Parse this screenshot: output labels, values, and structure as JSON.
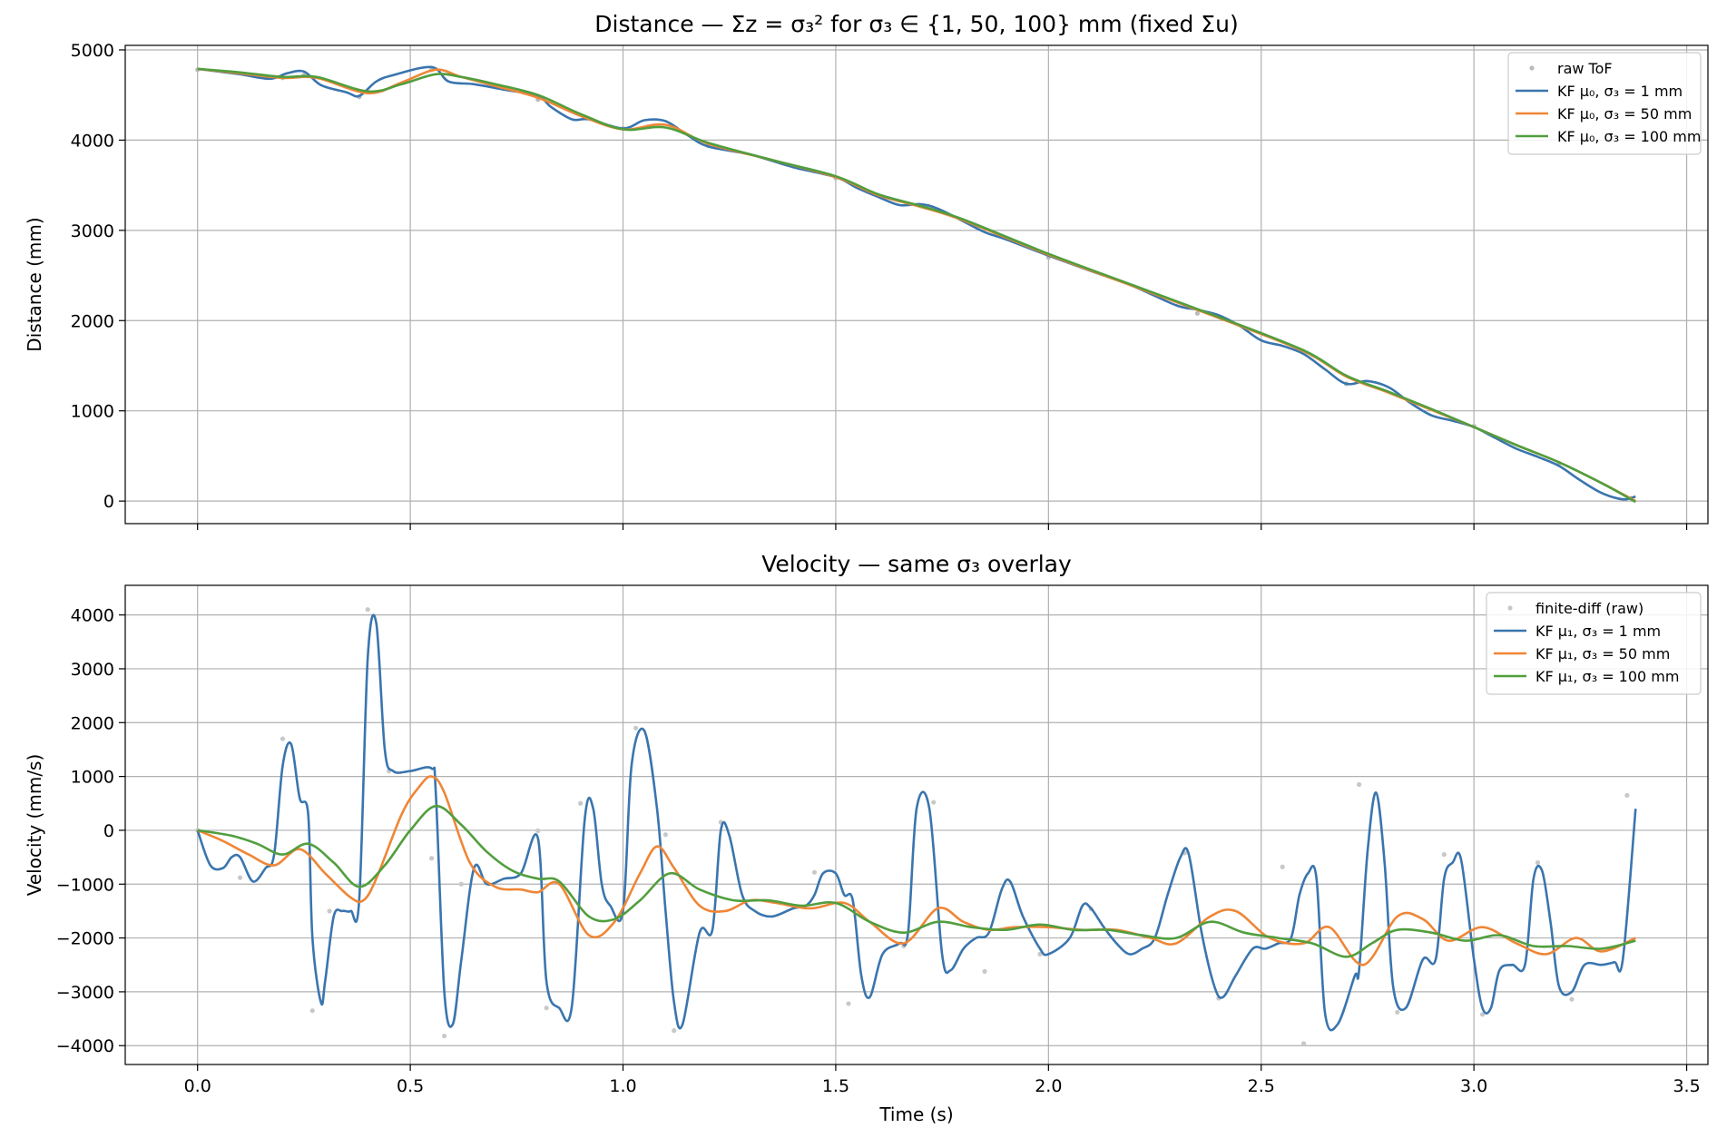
{
  "chart_data": [
    {
      "type": "line",
      "title": "Distance — Σz = σ₃² for σ₃ ∈ {1, 50, 100} mm (fixed Σu)",
      "xlabel": "",
      "ylabel": "Distance (mm)",
      "xlim": [
        -0.17,
        3.55
      ],
      "ylim": [
        -250,
        5050
      ],
      "x_ticks": [
        0.0,
        0.5,
        1.0,
        1.5,
        2.0,
        2.5,
        3.0,
        3.5
      ],
      "x_tick_labels": [],
      "y_ticks": [
        0,
        1000,
        2000,
        3000,
        4000,
        5000
      ],
      "y_tick_labels": [
        "0",
        "1000",
        "2000",
        "3000",
        "4000",
        "5000"
      ],
      "grid": true,
      "legend": "top-right",
      "series": [
        {
          "name": "raw ToF",
          "kind": "scatter",
          "color": "#bbbbbb",
          "x": [
            0.0,
            0.2,
            0.25,
            0.38,
            0.55,
            0.8,
            1.0,
            1.2,
            1.5,
            1.7,
            2.0,
            2.35,
            2.7,
            3.0,
            3.2,
            3.37
          ],
          "y": [
            4780,
            4690,
            4720,
            4480,
            4780,
            4450,
            4130,
            3940,
            3580,
            3270,
            2700,
            2080,
            1300,
            830,
            420,
            30
          ]
        },
        {
          "name": "KF μ₀, σ₃ = 1 mm",
          "kind": "line",
          "color": "#3a75ae",
          "x": [
            0.0,
            0.05,
            0.1,
            0.17,
            0.21,
            0.25,
            0.29,
            0.35,
            0.38,
            0.42,
            0.46,
            0.55,
            0.59,
            0.65,
            0.72,
            0.8,
            0.83,
            0.88,
            0.92,
            1.0,
            1.05,
            1.1,
            1.15,
            1.2,
            1.3,
            1.4,
            1.5,
            1.55,
            1.6,
            1.65,
            1.7,
            1.74,
            1.8,
            1.85,
            1.9,
            2.0,
            2.1,
            2.2,
            2.3,
            2.35,
            2.4,
            2.45,
            2.5,
            2.55,
            2.6,
            2.65,
            2.7,
            2.75,
            2.8,
            2.85,
            2.9,
            2.95,
            3.0,
            3.05,
            3.1,
            3.15,
            3.2,
            3.25,
            3.3,
            3.35,
            3.38
          ],
          "y": [
            4790,
            4760,
            4730,
            4680,
            4740,
            4760,
            4610,
            4530,
            4490,
            4650,
            4720,
            4810,
            4650,
            4620,
            4560,
            4490,
            4370,
            4230,
            4230,
            4130,
            4220,
            4210,
            4060,
            3930,
            3840,
            3700,
            3590,
            3470,
            3370,
            3280,
            3290,
            3240,
            3100,
            2980,
            2900,
            2720,
            2550,
            2380,
            2170,
            2120,
            2060,
            1940,
            1780,
            1720,
            1630,
            1460,
            1300,
            1330,
            1260,
            1090,
            950,
            890,
            820,
            700,
            580,
            490,
            390,
            230,
            90,
            20,
            50
          ]
        },
        {
          "name": "KF μ₀, σ₃ = 50 mm",
          "kind": "line",
          "color": "#ef8636",
          "x": [
            0.0,
            0.1,
            0.2,
            0.28,
            0.4,
            0.48,
            0.56,
            0.62,
            0.7,
            0.8,
            0.9,
            1.0,
            1.1,
            1.2,
            1.35,
            1.5,
            1.6,
            1.7,
            1.8,
            2.0,
            2.2,
            2.4,
            2.6,
            2.7,
            2.8,
            2.9,
            3.0,
            3.1,
            3.2,
            3.3,
            3.38
          ],
          "y": [
            4790,
            4740,
            4690,
            4690,
            4520,
            4640,
            4780,
            4700,
            4600,
            4470,
            4270,
            4120,
            4170,
            3960,
            3780,
            3590,
            3390,
            3260,
            3110,
            2730,
            2380,
            2030,
            1660,
            1380,
            1200,
            1010,
            820,
            620,
            430,
            200,
            0
          ]
        },
        {
          "name": "KF μ₀, σ₃ = 100 mm",
          "kind": "line",
          "color": "#519e3e",
          "x": [
            0.0,
            0.1,
            0.2,
            0.28,
            0.4,
            0.48,
            0.56,
            0.62,
            0.7,
            0.8,
            0.9,
            1.0,
            1.1,
            1.2,
            1.35,
            1.5,
            1.6,
            1.7,
            1.8,
            2.0,
            2.2,
            2.4,
            2.6,
            2.7,
            2.8,
            2.9,
            3.0,
            3.1,
            3.2,
            3.3,
            3.38
          ],
          "y": [
            4790,
            4750,
            4700,
            4700,
            4540,
            4620,
            4730,
            4700,
            4620,
            4500,
            4290,
            4120,
            4140,
            3970,
            3780,
            3600,
            3400,
            3270,
            3120,
            2740,
            2390,
            2040,
            1670,
            1390,
            1210,
            1020,
            820,
            620,
            430,
            200,
            -10
          ]
        }
      ]
    },
    {
      "type": "line",
      "title": "Velocity — same σ₃ overlay",
      "xlabel": "Time (s)",
      "ylabel": "Velocity (mm/s)",
      "xlim": [
        -0.17,
        3.55
      ],
      "ylim": [
        -4350,
        4550
      ],
      "x_ticks": [
        0.0,
        0.5,
        1.0,
        1.5,
        2.0,
        2.5,
        3.0,
        3.5
      ],
      "x_tick_labels": [
        "0.0",
        "0.5",
        "1.0",
        "1.5",
        "2.0",
        "2.5",
        "3.0",
        "3.5"
      ],
      "y_ticks": [
        -4000,
        -3000,
        -2000,
        -1000,
        0,
        1000,
        2000,
        3000,
        4000
      ],
      "y_tick_labels": [
        "−4000",
        "−3000",
        "−2000",
        "−1000",
        "0",
        "1000",
        "2000",
        "3000",
        "4000"
      ],
      "grid": true,
      "legend": "top-right",
      "series": [
        {
          "name": "finite-diff (raw)",
          "kind": "scatter",
          "color": "#c8c8c8",
          "x": [
            0.0,
            0.1,
            0.2,
            0.27,
            0.31,
            0.4,
            0.45,
            0.55,
            0.58,
            0.62,
            0.8,
            0.82,
            0.9,
            1.03,
            1.1,
            1.12,
            1.23,
            1.45,
            1.53,
            1.66,
            1.73,
            1.85,
            1.98,
            2.1,
            2.32,
            2.4,
            2.55,
            2.6,
            2.73,
            2.82,
            2.93,
            3.02,
            3.15,
            3.23,
            3.36
          ],
          "y": [
            0,
            -880,
            1700,
            -3350,
            -1500,
            4100,
            1100,
            -520,
            -3820,
            -1000,
            -10,
            -3300,
            500,
            1900,
            -80,
            -3720,
            150,
            -780,
            -3220,
            -2150,
            520,
            -2620,
            -2300,
            -1460,
            -420,
            -3120,
            -680,
            -3960,
            850,
            -3380,
            -450,
            -3420,
            -600,
            -3140,
            650
          ]
        },
        {
          "name": "KF μ₁, σ₃ = 1 mm",
          "kind": "line",
          "color": "#3a75ae",
          "x": [
            0.0,
            0.03,
            0.06,
            0.08,
            0.1,
            0.13,
            0.16,
            0.18,
            0.2,
            0.22,
            0.24,
            0.26,
            0.27,
            0.29,
            0.3,
            0.32,
            0.34,
            0.36,
            0.38,
            0.4,
            0.42,
            0.44,
            0.46,
            0.5,
            0.55,
            0.56,
            0.58,
            0.6,
            0.62,
            0.65,
            0.68,
            0.72,
            0.76,
            0.8,
            0.82,
            0.85,
            0.88,
            0.91,
            0.93,
            0.95,
            0.97,
            1.0,
            1.02,
            1.05,
            1.08,
            1.1,
            1.12,
            1.14,
            1.18,
            1.21,
            1.23,
            1.25,
            1.28,
            1.31,
            1.35,
            1.4,
            1.43,
            1.45,
            1.47,
            1.5,
            1.52,
            1.54,
            1.56,
            1.58,
            1.61,
            1.65,
            1.67,
            1.69,
            1.72,
            1.75,
            1.77,
            1.8,
            1.83,
            1.86,
            1.89,
            1.91,
            1.94,
            1.98,
            2.0,
            2.05,
            2.08,
            2.1,
            2.13,
            2.16,
            2.19,
            2.22,
            2.25,
            2.28,
            2.31,
            2.33,
            2.36,
            2.39,
            2.41,
            2.44,
            2.48,
            2.51,
            2.54,
            2.57,
            2.59,
            2.61,
            2.63,
            2.65,
            2.68,
            2.72,
            2.73,
            2.75,
            2.77,
            2.79,
            2.81,
            2.84,
            2.88,
            2.91,
            2.93,
            2.95,
            2.97,
            3.0,
            3.02,
            3.04,
            3.06,
            3.09,
            3.12,
            3.14,
            3.16,
            3.18,
            3.2,
            3.23,
            3.26,
            3.3,
            3.33,
            3.35,
            3.38
          ],
          "y": [
            0,
            -650,
            -700,
            -500,
            -500,
            -950,
            -700,
            -450,
            1200,
            1600,
            600,
            300,
            -2000,
            -3200,
            -2800,
            -1600,
            -1500,
            -1500,
            -1300,
            3200,
            3850,
            1500,
            1100,
            1100,
            1150,
            700,
            -3000,
            -3600,
            -2400,
            -700,
            -1000,
            -900,
            -800,
            -150,
            -2800,
            -3300,
            -3250,
            200,
            400,
            -1000,
            -1400,
            -1500,
            1200,
            1850,
            400,
            -1500,
            -3200,
            -3600,
            -1900,
            -1850,
            0,
            -100,
            -1200,
            -1500,
            -1600,
            -1450,
            -1400,
            -1200,
            -800,
            -800,
            -1200,
            -1300,
            -2700,
            -3100,
            -2300,
            -2100,
            -1900,
            400,
            400,
            -2300,
            -2600,
            -2200,
            -2000,
            -1900,
            -1100,
            -950,
            -1600,
            -2200,
            -2300,
            -2000,
            -1400,
            -1450,
            -1800,
            -2100,
            -2300,
            -2200,
            -2000,
            -1200,
            -500,
            -450,
            -1900,
            -2900,
            -3100,
            -2700,
            -2200,
            -2200,
            -2100,
            -2000,
            -1200,
            -800,
            -900,
            -3400,
            -3600,
            -2700,
            -2600,
            -400,
            700,
            -600,
            -2900,
            -3300,
            -2400,
            -2400,
            -900,
            -600,
            -550,
            -2400,
            -3300,
            -3300,
            -2600,
            -2500,
            -2500,
            -900,
            -750,
            -1700,
            -2900,
            -3000,
            -2500,
            -2500,
            -2450,
            -2400,
            400
          ],
          "dense": true
        },
        {
          "name": "KF μ₁, σ₃ = 50 mm",
          "kind": "line",
          "color": "#ef8636",
          "x": [
            0.0,
            0.06,
            0.12,
            0.18,
            0.24,
            0.3,
            0.36,
            0.39,
            0.42,
            0.48,
            0.52,
            0.55,
            0.58,
            0.64,
            0.7,
            0.76,
            0.8,
            0.85,
            0.92,
            0.98,
            1.04,
            1.08,
            1.12,
            1.18,
            1.24,
            1.3,
            1.36,
            1.44,
            1.52,
            1.58,
            1.66,
            1.74,
            1.8,
            1.86,
            1.92,
            2.0,
            2.08,
            2.16,
            2.24,
            2.3,
            2.38,
            2.44,
            2.52,
            2.6,
            2.66,
            2.74,
            2.82,
            2.88,
            2.94,
            3.02,
            3.1,
            3.17,
            3.24,
            3.3,
            3.38
          ],
          "y": [
            0,
            -200,
            -450,
            -650,
            -350,
            -800,
            -1250,
            -1300,
            -900,
            300,
            800,
            1000,
            700,
            -600,
            -1050,
            -1100,
            -1150,
            -1000,
            -1950,
            -1700,
            -800,
            -300,
            -700,
            -1400,
            -1500,
            -1300,
            -1350,
            -1450,
            -1350,
            -1700,
            -2100,
            -1450,
            -1700,
            -1850,
            -1800,
            -1800,
            -1850,
            -1850,
            -2000,
            -2100,
            -1600,
            -1500,
            -2000,
            -2100,
            -1800,
            -2500,
            -1600,
            -1650,
            -2050,
            -1800,
            -2100,
            -2300,
            -2000,
            -2250,
            -2000
          ]
        },
        {
          "name": "KF μ₁, σ₃ = 100 mm",
          "kind": "line",
          "color": "#519e3e",
          "x": [
            0.0,
            0.08,
            0.14,
            0.2,
            0.26,
            0.32,
            0.38,
            0.44,
            0.5,
            0.56,
            0.62,
            0.68,
            0.74,
            0.8,
            0.85,
            0.92,
            0.98,
            1.04,
            1.11,
            1.18,
            1.26,
            1.34,
            1.42,
            1.5,
            1.58,
            1.66,
            1.74,
            1.82,
            1.9,
            1.98,
            2.06,
            2.14,
            2.22,
            2.3,
            2.38,
            2.46,
            2.54,
            2.62,
            2.7,
            2.76,
            2.82,
            2.9,
            2.98,
            3.06,
            3.14,
            3.22,
            3.3,
            3.38
          ],
          "y": [
            0,
            -100,
            -250,
            -450,
            -250,
            -600,
            -1050,
            -650,
            0,
            450,
            100,
            -400,
            -750,
            -900,
            -950,
            -1600,
            -1650,
            -1300,
            -800,
            -1100,
            -1300,
            -1300,
            -1400,
            -1350,
            -1700,
            -1900,
            -1700,
            -1800,
            -1850,
            -1750,
            -1850,
            -1850,
            -1950,
            -2000,
            -1700,
            -1900,
            -2000,
            -2100,
            -2350,
            -2100,
            -1850,
            -1900,
            -2050,
            -1950,
            -2150,
            -2150,
            -2200,
            -2050
          ]
        }
      ]
    }
  ]
}
